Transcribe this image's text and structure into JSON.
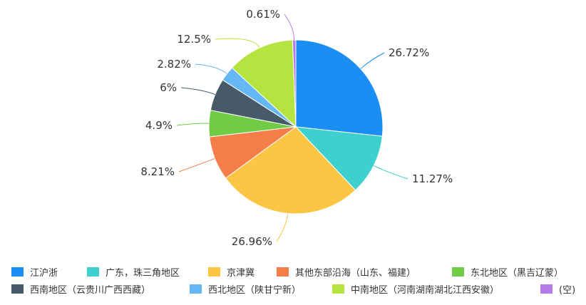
{
  "chart_data": {
    "type": "pie",
    "title": "",
    "legend_position": "bottom",
    "slices": [
      {
        "label": "江沪浙",
        "value": 26.72,
        "value_label": "26.72%",
        "color": "#1a8ef2"
      },
      {
        "label": "广东，珠三角地区",
        "value": 11.27,
        "value_label": "11.27%",
        "color": "#3ecfcf"
      },
      {
        "label": "京津冀",
        "value": 26.96,
        "value_label": "26.96%",
        "color": "#fdc544"
      },
      {
        "label": "其他东部沿海（山东、福建）",
        "value": 8.21,
        "value_label": "8.21%",
        "color": "#f47d4a"
      },
      {
        "label": "东北地区（黑吉辽蒙）",
        "value": 4.9,
        "value_label": "4.9%",
        "color": "#6fcc44"
      },
      {
        "label": "西南地区（云贵川广西西藏）",
        "value": 6,
        "value_label": "6%",
        "color": "#475a68"
      },
      {
        "label": "西北地区（陕甘宁新）",
        "value": 2.82,
        "value_label": "2.82%",
        "color": "#66b8f5"
      },
      {
        "label": "中南地区（河南湖南湖北江西安徽）",
        "value": 12.5,
        "value_label": "12.5%",
        "color": "#b5e33f"
      },
      {
        "label": "(空)",
        "value": 0.61,
        "value_label": "0.61%",
        "color": "#b57be8"
      }
    ]
  }
}
